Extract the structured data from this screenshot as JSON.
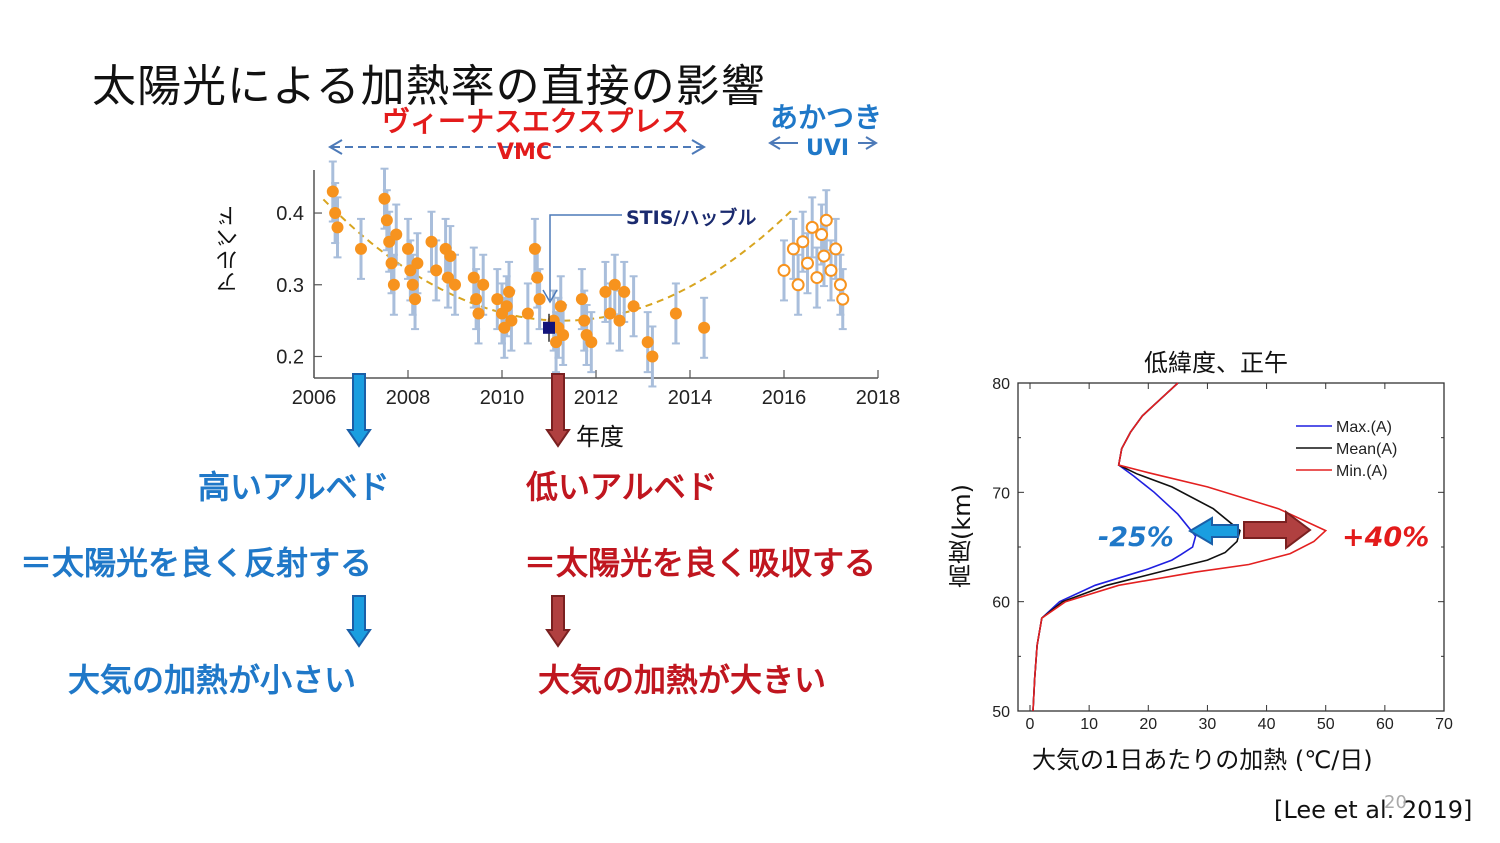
{
  "slide": {
    "title": "太陽光による加熱率の直接の影響",
    "missions": {
      "venus_express": "ヴィーナスエクスプレス",
      "vmc": "VMC",
      "akatsuki": "あかつき",
      "uvi": "UVI",
      "stis": "STIS/ハッブル"
    },
    "left": {
      "high_albedo": "高いアルベド",
      "reflect": "＝太陽光を良く反射する",
      "small_heating": "大気の加熱が小さい"
    },
    "right": {
      "low_albedo": "低いアルベド",
      "absorb": "＝太陽光を良く吸収する",
      "large_heating": "大気の加熱が大きい"
    },
    "pct_minus": "-25%",
    "pct_plus": "+40%",
    "citation": "[Lee et al. 2019]",
    "page_number": "20",
    "colors": {
      "blue": "#1f78c8",
      "red": "#c0161f",
      "orange": "#f7931e",
      "errbar": "#a9bedb"
    }
  },
  "chart_data": [
    {
      "type": "scatter",
      "title": "",
      "xlabel": "年度",
      "ylabel": "アルベド",
      "xlim": [
        2006,
        2018
      ],
      "ylim": [
        0.17,
        0.46
      ],
      "xticks": [
        2006,
        2008,
        2010,
        2012,
        2014,
        2016,
        2018
      ],
      "yticks": [
        0.2,
        0.3,
        0.4
      ],
      "x_tick_labels": [
        "2006",
        "2008",
        "2010",
        "2012",
        "2014",
        "2016",
        "2018"
      ],
      "y_tick_labels": [
        "0.2",
        "0.3",
        "0.4"
      ],
      "series": [
        {
          "name": "VMC",
          "marker": "filled-circle",
          "x": [
            2006.4,
            2006.45,
            2006.5,
            2007.0,
            2007.5,
            2007.55,
            2007.6,
            2007.65,
            2007.7,
            2007.75,
            2008.0,
            2008.05,
            2008.1,
            2008.15,
            2008.2,
            2008.5,
            2008.6,
            2008.8,
            2008.85,
            2008.9,
            2009.0,
            2009.4,
            2009.45,
            2009.5,
            2009.6,
            2009.9,
            2010.0,
            2010.05,
            2010.1,
            2010.15,
            2010.2,
            2010.55,
            2010.7,
            2010.75,
            2010.8,
            2011.1,
            2011.15,
            2011.2,
            2011.25,
            2011.3,
            2011.7,
            2011.75,
            2011.8,
            2011.9,
            2012.2,
            2012.3,
            2012.4,
            2012.5,
            2012.6,
            2012.8,
            2013.1,
            2013.2,
            2013.7,
            2014.3
          ],
          "y": [
            0.43,
            0.4,
            0.38,
            0.35,
            0.42,
            0.39,
            0.36,
            0.33,
            0.3,
            0.37,
            0.35,
            0.32,
            0.3,
            0.28,
            0.33,
            0.36,
            0.32,
            0.35,
            0.31,
            0.34,
            0.3,
            0.31,
            0.28,
            0.26,
            0.3,
            0.28,
            0.26,
            0.24,
            0.27,
            0.29,
            0.25,
            0.26,
            0.35,
            0.31,
            0.28,
            0.25,
            0.22,
            0.24,
            0.27,
            0.23,
            0.28,
            0.25,
            0.23,
            0.22,
            0.29,
            0.26,
            0.3,
            0.25,
            0.29,
            0.27,
            0.22,
            0.2,
            0.26,
            0.24
          ]
        },
        {
          "name": "UVI",
          "marker": "open-circle",
          "x": [
            2016.0,
            2016.2,
            2016.3,
            2016.4,
            2016.5,
            2016.6,
            2016.7,
            2016.8,
            2016.85,
            2016.9,
            2017.0,
            2017.1,
            2017.2,
            2017.25
          ],
          "y": [
            0.32,
            0.35,
            0.3,
            0.36,
            0.33,
            0.38,
            0.31,
            0.37,
            0.34,
            0.39,
            0.32,
            0.35,
            0.3,
            0.28
          ]
        },
        {
          "name": "STIS/ハッブル",
          "marker": "square",
          "x": [
            2011.0
          ],
          "y": [
            0.24
          ]
        }
      ],
      "trend": {
        "style": "dashed",
        "vertex_x": 2011.3,
        "vertex_y": 0.25
      },
      "error_bars": true
    },
    {
      "type": "line",
      "title": "低緯度、正午",
      "xlabel": "大気の1日あたりの加熱 (℃/日)",
      "ylabel": "高度(km)",
      "xlim": [
        0,
        70
      ],
      "ylim": [
        50,
        80
      ],
      "xticks": [
        0,
        10,
        20,
        30,
        40,
        50,
        60,
        70
      ],
      "yticks": [
        50,
        60,
        70,
        80
      ],
      "x_tick_labels": [
        "0",
        "10",
        "20",
        "30",
        "40",
        "50",
        "60",
        "70"
      ],
      "y_tick_labels": [
        "50",
        "60",
        "70",
        "80"
      ],
      "legend": "top-right",
      "series": [
        {
          "name": "Max.(A)",
          "color": "#1f1fe0",
          "x": [
            0.5,
            0.8,
            1.2,
            2.0,
            5.0,
            11.0,
            20.0,
            24.0,
            25.5,
            27.5,
            28.0,
            25.0,
            21.0,
            17.5,
            15.0,
            15.5,
            17.0,
            19.0,
            22.0,
            25.0
          ],
          "y": [
            50,
            53,
            56,
            58.5,
            60.0,
            61.5,
            63.0,
            63.8,
            64.3,
            65.0,
            66.0,
            68.0,
            70.0,
            71.5,
            72.5,
            74.0,
            75.5,
            77.0,
            78.5,
            80
          ]
        },
        {
          "name": "Mean(A)",
          "color": "#111111",
          "x": [
            0.5,
            0.8,
            1.2,
            2.0,
            5.5,
            13.0,
            24.0,
            30.0,
            33.0,
            35.0,
            35.5,
            31.0,
            24.0,
            18.0,
            15.0,
            15.5,
            17.0,
            19.0,
            22.0,
            25.0
          ],
          "y": [
            50,
            53,
            56,
            58.5,
            60.0,
            61.5,
            63.0,
            63.8,
            64.5,
            65.5,
            66.5,
            68.5,
            70.5,
            71.7,
            72.5,
            74.0,
            75.5,
            77.0,
            78.5,
            80
          ]
        },
        {
          "name": "Min.(A)",
          "color": "#e32020",
          "x": [
            0.5,
            0.8,
            1.2,
            2.0,
            6.0,
            15.0,
            28.0,
            37.0,
            44.0,
            48.0,
            50.0,
            42.0,
            30.0,
            20.0,
            15.0,
            15.5,
            17.0,
            19.0,
            22.0,
            25.0
          ],
          "y": [
            50,
            53,
            56,
            58.5,
            60.0,
            61.5,
            62.7,
            63.4,
            64.4,
            65.5,
            66.5,
            68.5,
            70.5,
            71.8,
            72.5,
            74.0,
            75.5,
            77.0,
            78.5,
            80
          ]
        }
      ]
    }
  ]
}
